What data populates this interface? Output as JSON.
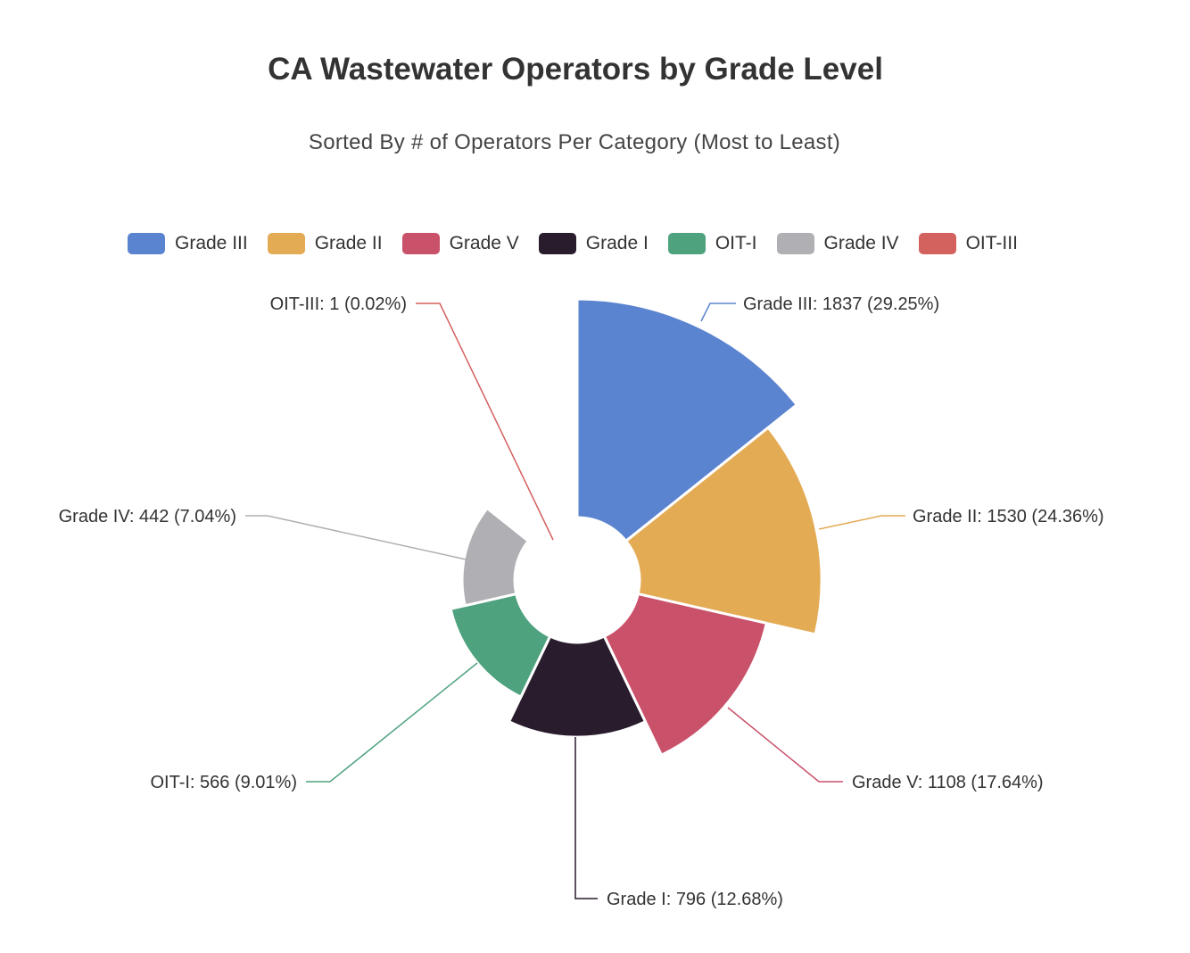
{
  "chart_data": {
    "type": "pie",
    "rose_type": "area",
    "title": "CA Wastewater Operators by Grade Level",
    "subtitle": "Sorted By # of Operators Per Category (Most to Least)",
    "legend_position": "top",
    "categories": [
      "Grade III",
      "Grade II",
      "Grade V",
      "Grade I",
      "OIT-I",
      "Grade IV",
      "OIT-III"
    ],
    "values": [
      1837,
      1530,
      1108,
      796,
      566,
      442,
      1
    ],
    "percents": [
      "29.25%",
      "24.36%",
      "17.64%",
      "12.68%",
      "9.01%",
      "7.04%",
      "0.02%"
    ],
    "labels": [
      "Grade III: 1837 (29.25%)",
      "Grade II: 1530 (24.36%)",
      "Grade V: 1108 (17.64%)",
      "Grade I: 796 (12.68%)",
      "OIT-I: 566 (9.01%)",
      "Grade IV: 442 (7.04%)",
      "OIT-III: 1 (0.02%)"
    ],
    "colors": [
      "#5b84d0",
      "#e4ab55",
      "#c9516a",
      "#291c2d",
      "#4ea27e",
      "#b0afb4",
      "#d3615e"
    ]
  }
}
